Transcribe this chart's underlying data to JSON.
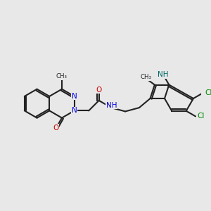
{
  "bg_color": "#e8e8e8",
  "bond_color": "#222222",
  "bond_lw": 1.5,
  "doff": 0.08,
  "colors": {
    "N": "#0000dd",
    "O": "#cc0000",
    "Cl": "#008800",
    "NH_indole": "#006666",
    "C": "#222222"
  },
  "fs": 7.5,
  "fs_sm": 6.2
}
